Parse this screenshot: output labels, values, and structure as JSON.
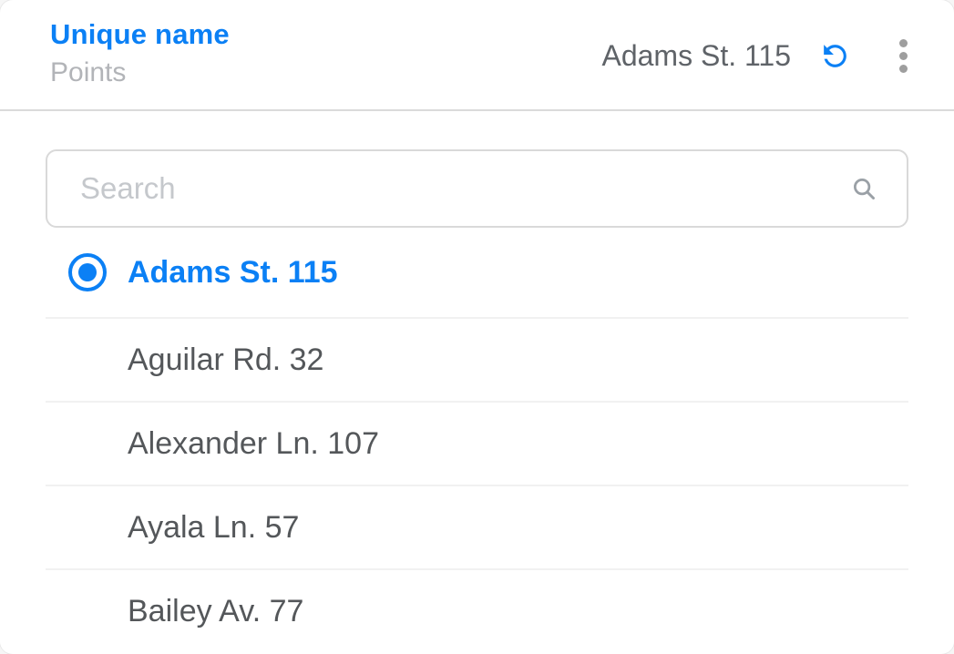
{
  "header": {
    "title": "Unique name",
    "subtitle": "Points",
    "selected_value": "Adams St. 115",
    "reset_icon": "undo-rotate-left-icon",
    "menu_icon": "kebab-vertical-icon"
  },
  "search": {
    "placeholder": "Search",
    "value": "",
    "icon": "magnifier-icon"
  },
  "list": {
    "items": [
      {
        "label": "Adams St. 115",
        "selected": true
      },
      {
        "label": "Aguilar Rd. 32",
        "selected": false
      },
      {
        "label": "Alexander Ln. 107",
        "selected": false
      },
      {
        "label": "Ayala Ln. 57",
        "selected": false
      },
      {
        "label": "Bailey Av. 77",
        "selected": false
      }
    ]
  },
  "colors": {
    "accent_blue": "#0b80f5",
    "item_text": "#54575a",
    "header_value_text": "#5f6368",
    "subtitle_gray": "#b2b4b8",
    "placeholder_gray": "#c5c8cc",
    "kebab_gray": "#9e9e9e",
    "header_divider": "#dadada",
    "list_divider": "#f1f1f1"
  }
}
